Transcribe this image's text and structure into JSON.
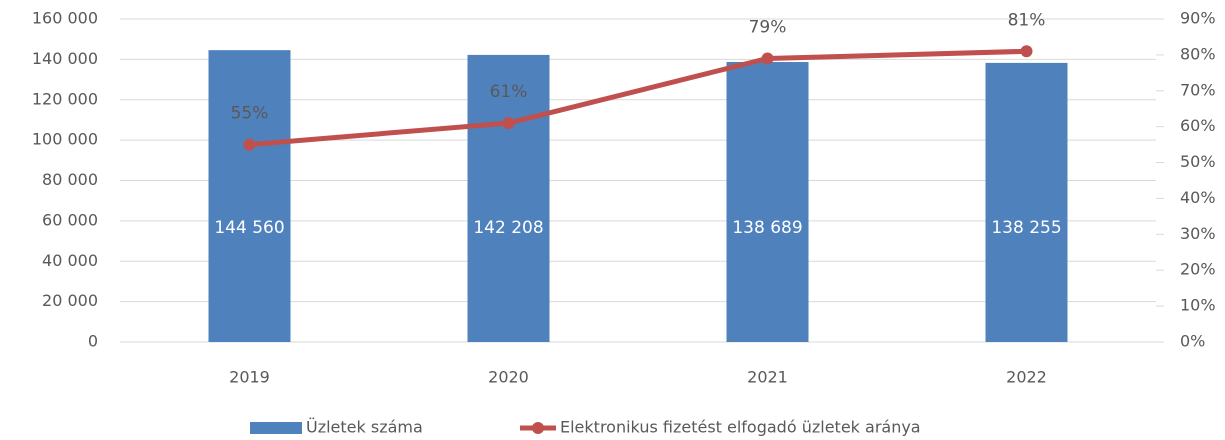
{
  "chart_data": {
    "type": "bar",
    "categories": [
      "2019",
      "2020",
      "2021",
      "2022"
    ],
    "series": [
      {
        "name": "Üzletek száma",
        "type": "bar",
        "color": "#4f81bd",
        "axis": "y",
        "values": [
          144560,
          142208,
          138689,
          138255
        ],
        "value_labels": [
          "144 560",
          "142 208",
          "138 689",
          "138 255"
        ]
      },
      {
        "name": "Elektronikus fizetést elfogadó üzletek aránya",
        "type": "line",
        "color": "#c0504d",
        "axis": "y2",
        "values": [
          55,
          61,
          79,
          81
        ],
        "value_labels": [
          "55%",
          "61%",
          "79%",
          "81%"
        ]
      }
    ],
    "ylim": [
      0,
      160000
    ],
    "yticks": [
      0,
      {
        "value": 20000,
        "label": "20 000"
      },
      {
        "value": 40000,
        "label": "40 000"
      },
      {
        "value": 60000,
        "label": "60 000"
      },
      {
        "value": 80000,
        "label": "80 000"
      },
      {
        "value": 100000,
        "label": "100 000"
      },
      {
        "value": 120000,
        "label": "120 000"
      },
      {
        "value": 140000,
        "label": "140 000"
      },
      {
        "value": 160000,
        "label": "160 000"
      }
    ],
    "y2lim": [
      0,
      90
    ],
    "y2ticks": [
      {
        "value": 0,
        "label": "0%"
      },
      {
        "value": 10,
        "label": "10%"
      },
      {
        "value": 20,
        "label": "20%"
      },
      {
        "value": 30,
        "label": "30%"
      },
      {
        "value": 40,
        "label": "40%"
      },
      {
        "value": 50,
        "label": "50%"
      },
      {
        "value": 60,
        "label": "60%"
      },
      {
        "value": 70,
        "label": "70%"
      },
      {
        "value": 80,
        "label": "80%"
      },
      {
        "value": 90,
        "label": "90%"
      }
    ],
    "legend": "bottom"
  }
}
